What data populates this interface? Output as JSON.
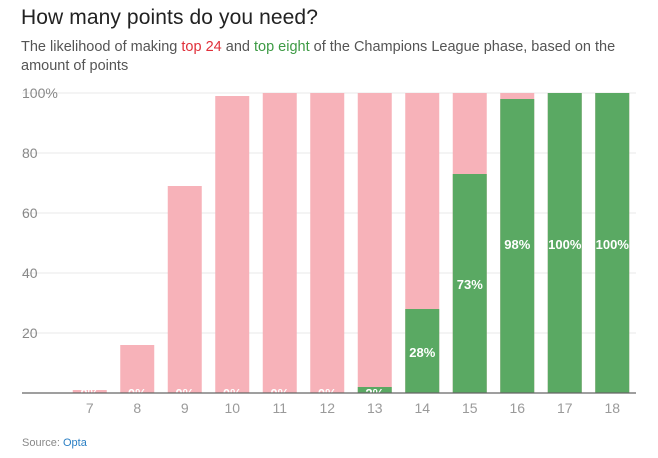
{
  "header": {
    "title": "How many points do you need?",
    "subtitle_before": "The likelihood of making ",
    "subtitle_top24": "top 24",
    "subtitle_and": " and ",
    "subtitle_top8": "top eight",
    "subtitle_after": " of the Champions League phase, based on the amount of points"
  },
  "source": {
    "prefix": "Source: ",
    "name": "Opta"
  },
  "colors": {
    "top24": "#f7b2b9",
    "top8": "#5aa963",
    "axis": "#666666",
    "grid": "#e8e8e8"
  },
  "chart_data": {
    "type": "bar",
    "categories": [
      "7",
      "8",
      "9",
      "10",
      "11",
      "12",
      "13",
      "14",
      "15",
      "16",
      "17",
      "18"
    ],
    "series": [
      {
        "name": "top 24",
        "values": [
          1,
          16,
          69,
          99,
          100,
          100,
          100,
          100,
          100,
          100,
          100,
          100
        ]
      },
      {
        "name": "top eight",
        "values": [
          0,
          0,
          0,
          0,
          0,
          0,
          2,
          28,
          73,
          98,
          100,
          100
        ]
      }
    ],
    "data_labels": [
      "0%",
      "0%",
      "0%",
      "0%",
      "0%",
      "0%",
      "2%",
      "28%",
      "73%",
      "98%",
      "100%",
      "100%"
    ],
    "y_ticks": [
      "100%",
      "80",
      "60",
      "40",
      "20"
    ],
    "y_tick_values": [
      100,
      80,
      60,
      40,
      20
    ],
    "ylim": [
      0,
      100
    ],
    "grid": true,
    "overlapping_bars": true
  }
}
